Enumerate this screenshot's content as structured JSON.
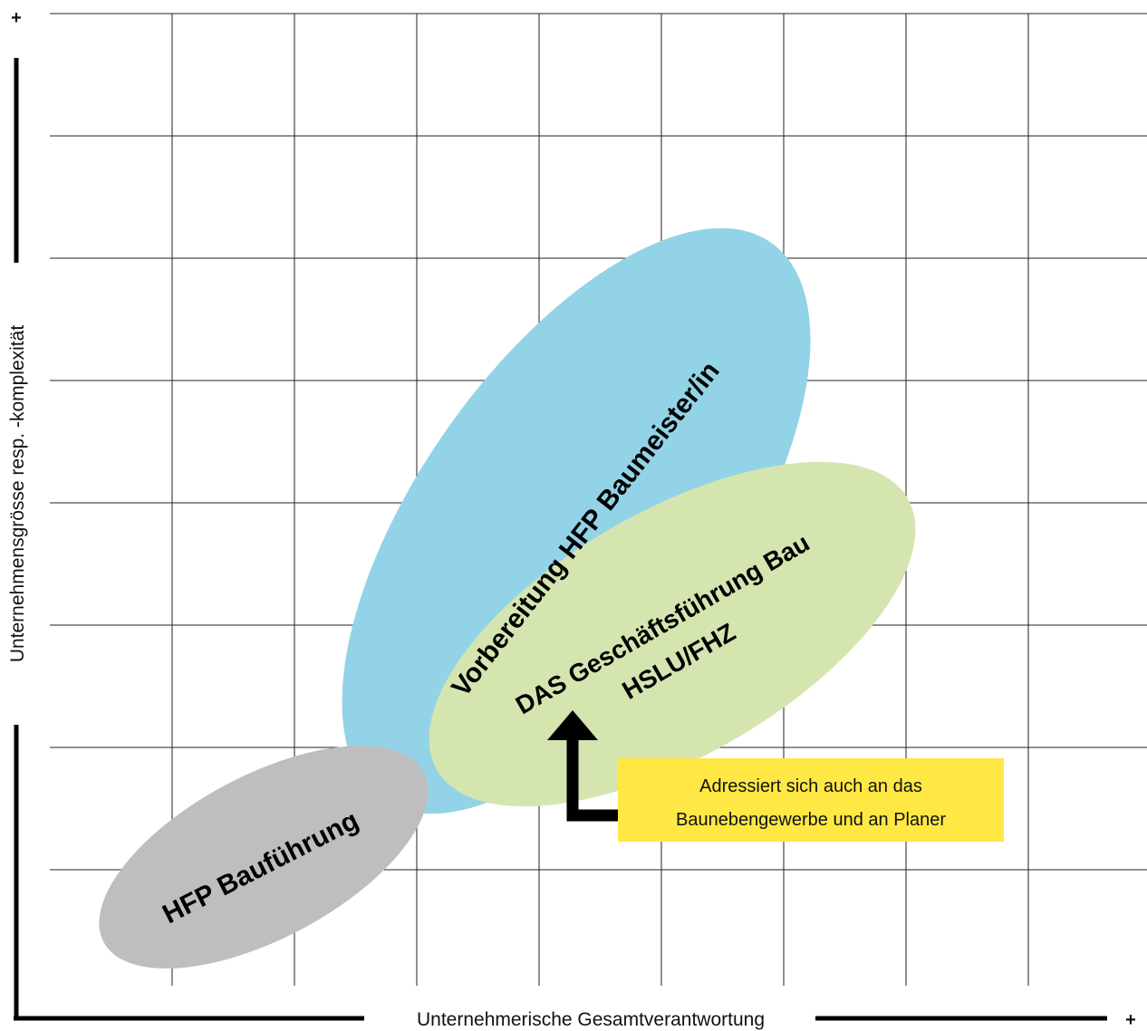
{
  "axes": {
    "x_label": "Unternehmerische Gesamtverantwortung",
    "y_label": "Unternehmensgrösse resp. -komplexität",
    "x_plus": "+",
    "y_plus": "+"
  },
  "grid": {
    "columns": 9,
    "rows": 8,
    "line_color": "#222222"
  },
  "ellipses": {
    "hfp_baumeister": {
      "label": "Vorbereitung HFP Baumeister/in",
      "color": "#93d3e7"
    },
    "das_gf_bau": {
      "label_line1": "DAS Geschäftsführung Bau",
      "label_line2": "HSLU/FHZ",
      "color": "#d5e5b0"
    },
    "hfp_baufuehrung": {
      "label": "HFP Bauführung",
      "color": "#bebebe"
    }
  },
  "callout": {
    "line1": "Adressiert sich auch an das",
    "line2": "Baunebengewerbe und an Planer",
    "color": "#ffe844",
    "arrow_color": "#000000"
  }
}
